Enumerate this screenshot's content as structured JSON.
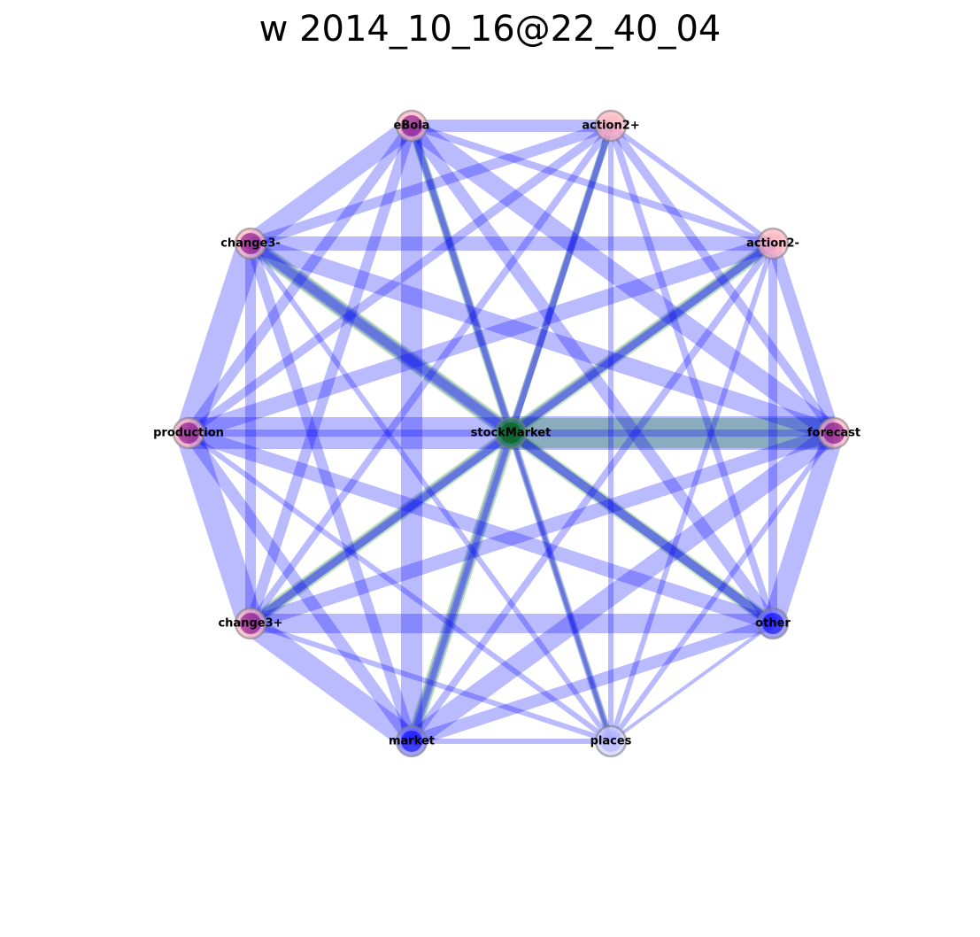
{
  "title": "w 2014_10_16@22_40_04",
  "colors": {
    "edge_blue": "#0000ff",
    "edge_green": "#008000",
    "node_pink": "#ffb6c1",
    "node_purple": "#800080",
    "node_blue": "#0000ff",
    "node_green": "#008000",
    "node_outline": "#808080"
  },
  "nodes": [
    {
      "id": "stockMarket",
      "label": "stockMarket",
      "fill": "#006400",
      "halo": "#2e8b57"
    },
    {
      "id": "eBola",
      "label": "eBola",
      "fill": "#800080",
      "halo": "#ffb6c1"
    },
    {
      "id": "action2+",
      "label": "action2+",
      "fill": "#ffb6c1",
      "halo": "#ffb6c1"
    },
    {
      "id": "action2-",
      "label": "action2-",
      "fill": "#ffb6c1",
      "halo": "#ffb6c1"
    },
    {
      "id": "forecast",
      "label": "forecast",
      "fill": "#800080",
      "halo": "#ffb6c1"
    },
    {
      "id": "other",
      "label": "other",
      "fill": "#0000ff",
      "halo": "#8080ff"
    },
    {
      "id": "places",
      "label": "places",
      "fill": "#b0b0ff",
      "halo": "#d0d0ff"
    },
    {
      "id": "market",
      "label": "market",
      "fill": "#0000ff",
      "halo": "#8080ff"
    },
    {
      "id": "change3+",
      "label": "change3+",
      "fill": "#800080",
      "halo": "#ffb6c1"
    },
    {
      "id": "production",
      "label": "production",
      "fill": "#800080",
      "halo": "#ffb6c1"
    },
    {
      "id": "change3-",
      "label": "change3-",
      "fill": "#800080",
      "halo": "#ffb6c1"
    }
  ],
  "edges": [
    {
      "source": "stockMarket",
      "target": "forecast",
      "weight": 38,
      "color": "blue"
    },
    {
      "source": "stockMarket",
      "target": "forecast",
      "weight": 34,
      "color": "green"
    },
    {
      "source": "stockMarket",
      "target": "change3-",
      "weight": 18,
      "color": "green"
    },
    {
      "source": "stockMarket",
      "target": "action2-",
      "weight": 14,
      "color": "green"
    },
    {
      "source": "stockMarket",
      "target": "other",
      "weight": 14,
      "color": "green"
    },
    {
      "source": "stockMarket",
      "target": "change3+",
      "weight": 14,
      "color": "green"
    },
    {
      "source": "stockMarket",
      "target": "market",
      "weight": 14,
      "color": "green"
    },
    {
      "source": "stockMarket",
      "target": "eBola",
      "weight": 10,
      "color": "green"
    },
    {
      "source": "stockMarket",
      "target": "action2+",
      "weight": 8,
      "color": "green"
    },
    {
      "source": "stockMarket",
      "target": "places",
      "weight": 6,
      "color": "green"
    },
    {
      "source": "stockMarket",
      "target": "production",
      "weight": 36,
      "color": "blue"
    },
    {
      "source": "stockMarket",
      "target": "change3-",
      "weight": 14,
      "color": "blue"
    },
    {
      "source": "stockMarket",
      "target": "action2-",
      "weight": 10,
      "color": "blue"
    },
    {
      "source": "stockMarket",
      "target": "other",
      "weight": 10,
      "color": "blue"
    },
    {
      "source": "stockMarket",
      "target": "change3+",
      "weight": 10,
      "color": "blue"
    },
    {
      "source": "stockMarket",
      "target": "market",
      "weight": 10,
      "color": "blue"
    },
    {
      "source": "stockMarket",
      "target": "eBola",
      "weight": 6,
      "color": "blue"
    },
    {
      "source": "stockMarket",
      "target": "action2+",
      "weight": 8,
      "color": "blue"
    },
    {
      "source": "stockMarket",
      "target": "places",
      "weight": 4,
      "color": "blue"
    },
    {
      "source": "eBola",
      "target": "action2+",
      "weight": 14,
      "color": "blue"
    },
    {
      "source": "eBola",
      "target": "change3-",
      "weight": 22,
      "color": "blue"
    },
    {
      "source": "eBola",
      "target": "market",
      "weight": 24,
      "color": "blue"
    },
    {
      "source": "eBola",
      "target": "forecast",
      "weight": 22,
      "color": "blue"
    },
    {
      "source": "eBola",
      "target": "other",
      "weight": 14,
      "color": "blue"
    },
    {
      "source": "eBola",
      "target": "change3+",
      "weight": 12,
      "color": "blue"
    },
    {
      "source": "eBola",
      "target": "production",
      "weight": 12,
      "color": "blue"
    },
    {
      "source": "eBola",
      "target": "action2-",
      "weight": 8,
      "color": "blue"
    },
    {
      "source": "eBola",
      "target": "places",
      "weight": 8,
      "color": "blue"
    },
    {
      "source": "action2+",
      "target": "change3-",
      "weight": 12,
      "color": "blue"
    },
    {
      "source": "action2+",
      "target": "action2-",
      "weight": 6,
      "color": "blue"
    },
    {
      "source": "action2+",
      "target": "production",
      "weight": 10,
      "color": "blue"
    },
    {
      "source": "action2+",
      "target": "forecast",
      "weight": 10,
      "color": "blue"
    },
    {
      "source": "action2+",
      "target": "other",
      "weight": 8,
      "color": "blue"
    },
    {
      "source": "action2+",
      "target": "change3+",
      "weight": 8,
      "color": "blue"
    },
    {
      "source": "action2+",
      "target": "places",
      "weight": 6,
      "color": "blue"
    },
    {
      "source": "action2+",
      "target": "market",
      "weight": 6,
      "color": "blue"
    },
    {
      "source": "change3-",
      "target": "action2-",
      "weight": 16,
      "color": "blue"
    },
    {
      "source": "change3-",
      "target": "production",
      "weight": 30,
      "color": "blue"
    },
    {
      "source": "change3-",
      "target": "forecast",
      "weight": 20,
      "color": "blue"
    },
    {
      "source": "change3-",
      "target": "change3+",
      "weight": 12,
      "color": "blue"
    },
    {
      "source": "change3-",
      "target": "market",
      "weight": 12,
      "color": "blue"
    },
    {
      "source": "change3-",
      "target": "other",
      "weight": 10,
      "color": "blue"
    },
    {
      "source": "change3-",
      "target": "places",
      "weight": 6,
      "color": "blue"
    },
    {
      "source": "action2-",
      "target": "production",
      "weight": 18,
      "color": "blue"
    },
    {
      "source": "action2-",
      "target": "forecast",
      "weight": 14,
      "color": "blue"
    },
    {
      "source": "action2-",
      "target": "other",
      "weight": 10,
      "color": "blue"
    },
    {
      "source": "action2-",
      "target": "change3+",
      "weight": 8,
      "color": "blue"
    },
    {
      "source": "action2-",
      "target": "market",
      "weight": 8,
      "color": "blue"
    },
    {
      "source": "action2-",
      "target": "places",
      "weight": 6,
      "color": "blue"
    },
    {
      "source": "production",
      "target": "change3+",
      "weight": 30,
      "color": "blue"
    },
    {
      "source": "production",
      "target": "other",
      "weight": 16,
      "color": "blue"
    },
    {
      "source": "production",
      "target": "market",
      "weight": 14,
      "color": "blue"
    },
    {
      "source": "production",
      "target": "places",
      "weight": 6,
      "color": "blue"
    },
    {
      "source": "production",
      "target": "forecast",
      "weight": 8,
      "color": "blue"
    },
    {
      "source": "forecast",
      "target": "other",
      "weight": 24,
      "color": "blue"
    },
    {
      "source": "forecast",
      "target": "change3+",
      "weight": 16,
      "color": "blue"
    },
    {
      "source": "forecast",
      "target": "market",
      "weight": 22,
      "color": "blue"
    },
    {
      "source": "forecast",
      "target": "places",
      "weight": 6,
      "color": "blue"
    },
    {
      "source": "other",
      "target": "change3+",
      "weight": 22,
      "color": "blue"
    },
    {
      "source": "other",
      "target": "market",
      "weight": 14,
      "color": "blue"
    },
    {
      "source": "other",
      "target": "places",
      "weight": 4,
      "color": "blue"
    },
    {
      "source": "change3+",
      "target": "market",
      "weight": 26,
      "color": "blue"
    },
    {
      "source": "change3+",
      "target": "places",
      "weight": 6,
      "color": "blue"
    },
    {
      "source": "market",
      "target": "places",
      "weight": 6,
      "color": "blue"
    }
  ]
}
